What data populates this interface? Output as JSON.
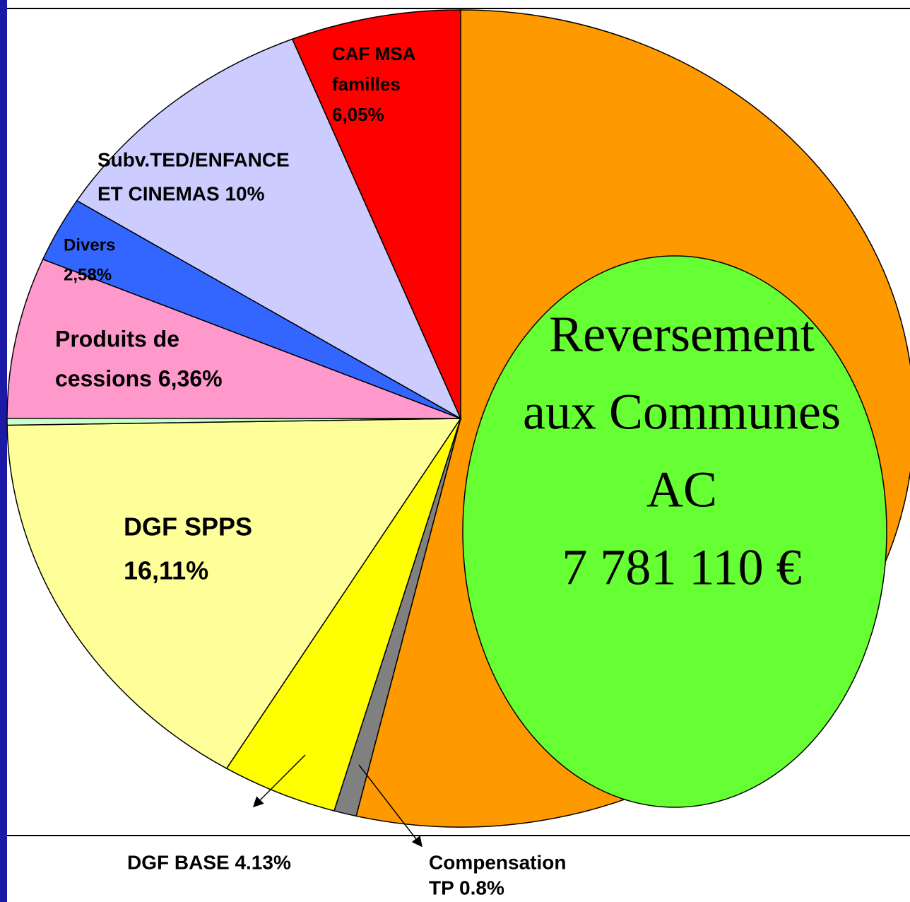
{
  "chart_data": {
    "type": "pie",
    "labels": [
      [
        "Reversement",
        "aux Communes",
        "AC",
        "7 781 110 €"
      ],
      [
        "Compensation",
        "TP 0.8%"
      ],
      [
        "DGF BASE 4.13%"
      ],
      [
        "DGF SPPS",
        "16,11%"
      ],
      null,
      [
        "Produits de",
        "cessions 6,36%"
      ],
      [
        "Divers",
        "2,58%"
      ],
      [
        "Subv.TED/ENFANCE",
        "ET CINEMAS 10%"
      ],
      [
        "CAF MSA",
        "familles",
        "6,05%"
      ]
    ],
    "values": [
      53.7,
      0.8,
      4.13,
      16.11,
      0.27,
      6.36,
      2.58,
      10,
      6.05
    ],
    "colors": [
      "#ff9900",
      "#808080",
      "#ffff00",
      "#ffff99",
      "#ccffcc",
      "#ff99cc",
      "#3366ff",
      "#ccccff",
      "#ff0000"
    ]
  }
}
